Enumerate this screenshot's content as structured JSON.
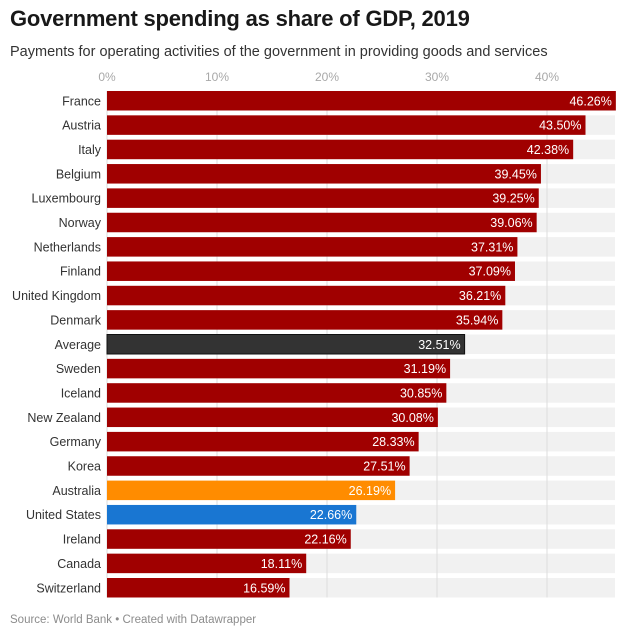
{
  "header": {
    "title": "Government spending as share of GDP, 2019",
    "subtitle": "Payments for operating activities of the government in providing goods and services"
  },
  "footer": {
    "text": "Source: World Bank • Created with Datawrapper"
  },
  "colors": {
    "default_bar": "#a00000",
    "average_bar": "#333333",
    "australia_bar": "#ff8c00",
    "united_states_bar": "#1976d2",
    "track": "#f1f1f1",
    "grid": "#dddddd"
  },
  "chart_data": {
    "type": "bar",
    "orientation": "horizontal",
    "title": "Government spending as share of GDP, 2019",
    "subtitle": "Payments for operating activities of the government in providing goods and services",
    "xlabel": "",
    "ylabel": "",
    "xlim": [
      0,
      46.26
    ],
    "x_ticks": [
      0,
      10,
      20,
      30,
      40
    ],
    "x_tick_labels": [
      "0%",
      "10%",
      "20%",
      "30%",
      "40%"
    ],
    "tick_position": "top",
    "grid": true,
    "legend": "none",
    "categories": [
      "France",
      "Austria",
      "Italy",
      "Belgium",
      "Luxembourg",
      "Norway",
      "Netherlands",
      "Finland",
      "United Kingdom",
      "Denmark",
      "Average",
      "Sweden",
      "Iceland",
      "New Zealand",
      "Germany",
      "Korea",
      "Australia",
      "United States",
      "Ireland",
      "Canada",
      "Switzerland"
    ],
    "values": [
      46.26,
      43.5,
      42.38,
      39.45,
      39.25,
      39.06,
      37.31,
      37.09,
      36.21,
      35.94,
      32.51,
      31.19,
      30.85,
      30.08,
      28.33,
      27.51,
      26.19,
      22.66,
      22.16,
      18.11,
      16.59
    ],
    "value_labels": [
      "46.26%",
      "43.50%",
      "42.38%",
      "39.45%",
      "39.25%",
      "39.06%",
      "37.31%",
      "37.09%",
      "36.21%",
      "35.94%",
      "32.51%",
      "31.19%",
      "30.85%",
      "30.08%",
      "28.33%",
      "27.51%",
      "26.19%",
      "22.66%",
      "22.16%",
      "18.11%",
      "16.59%"
    ],
    "highlights": {
      "Average": "#333333",
      "Australia": "#ff8c00",
      "United States": "#1976d2"
    },
    "source": "Source: World Bank • Created with Datawrapper"
  }
}
